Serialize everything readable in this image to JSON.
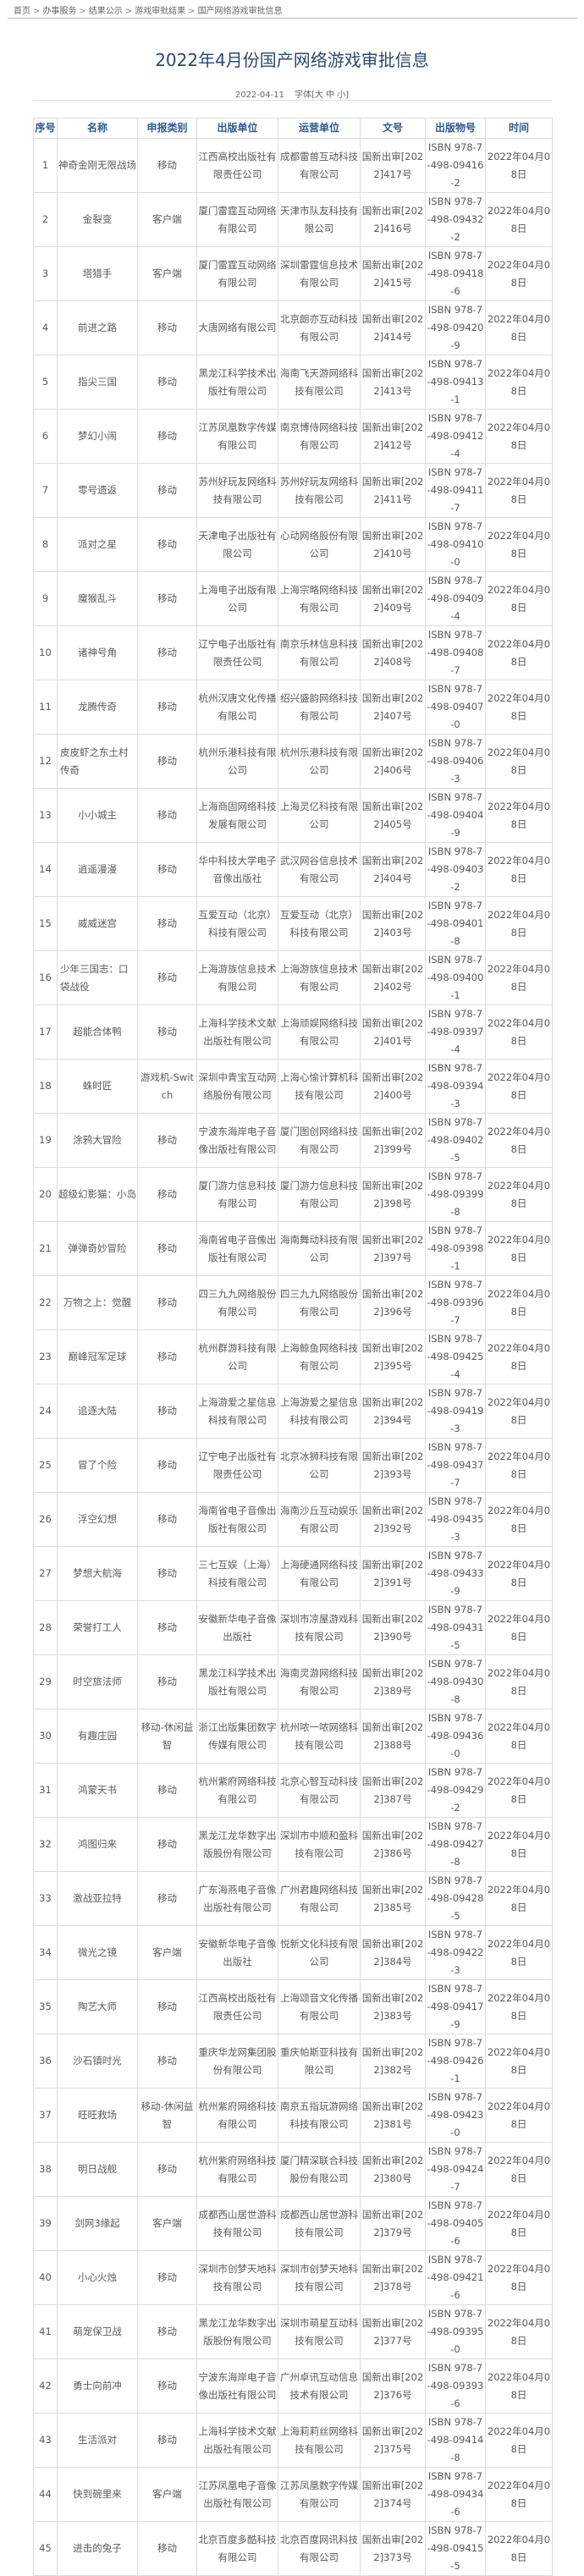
{
  "breadcrumb": [
    "首页",
    "办事服务",
    "结果公示",
    "游戏审批结果",
    "国产网络游戏审批信息"
  ],
  "breadcrumb_sep": ">",
  "title": "2022年4月份国产网络游戏审批信息",
  "meta": {
    "date": "2022-04-11",
    "font_label": "字体",
    "font_open": "[",
    "font_large": "大",
    "font_medium": "中",
    "font_small": "小",
    "font_close": "]"
  },
  "table": {
    "headers": [
      "序号",
      "名称",
      "申报类别",
      "出版单位",
      "运营单位",
      "文号",
      "出版物号",
      "时间"
    ],
    "rows": [
      [
        "1",
        "神奇金刚无限战场",
        "移动",
        "江西高校出版社有限责任公司",
        "成都雷兽互动科技有限公司",
        "国新出审[2022]417号",
        "ISBN 978-7-498-09416-2",
        "2022年04月08日"
      ],
      [
        "2",
        "金裂变",
        "客户端",
        "厦门雷霆互动网络有限公司",
        "天津市队友科技有限公司",
        "国新出审[2022]416号",
        "ISBN 978-7-498-09432-2",
        "2022年04月08日"
      ],
      [
        "3",
        "塔猎手",
        "客户端",
        "厦门雷霆互动网络有限公司",
        "深圳雷霆信息技术有限公司",
        "国新出审[2022]415号",
        "ISBN 978-7-498-09418-6",
        "2022年04月08日"
      ],
      [
        "4",
        "前进之路",
        "移动",
        "大唐网络有限公司",
        "北京朗亦互动科技有限公司",
        "国新出审[2022]414号",
        "ISBN 978-7-498-09420-9",
        "2022年04月08日"
      ],
      [
        "5",
        "指尖三国",
        "移动",
        "黑龙江科学技术出版社有限公司",
        "海南飞天游网络科技有限公司",
        "国新出审[2022]413号",
        "ISBN 978-7-498-09413-1",
        "2022年04月08日"
      ],
      [
        "6",
        "梦幻小闹",
        "移动",
        "江苏凤凰数字传媒有限公司",
        "南京博侍网络科技有限公司",
        "国新出审[2022]412号",
        "ISBN 978-7-498-09412-4",
        "2022年04月08日"
      ],
      [
        "7",
        "零号遗返",
        "移动",
        "苏州好玩友网络科技有限公司",
        "苏州好玩友网络科技有限公司",
        "国新出审[2022]411号",
        "ISBN 978-7-498-09411-7",
        "2022年04月08日"
      ],
      [
        "8",
        "派对之星",
        "移动",
        "天津电子出版社有限公司",
        "心动网络股份有限公司",
        "国新出审[2022]410号",
        "ISBN 978-7-498-09410-0",
        "2022年04月08日"
      ],
      [
        "9",
        "魔猴乱斗",
        "移动",
        "上海电子出版有限公司",
        "上海宗略网络科技有限公司",
        "国新出审[2022]409号",
        "ISBN 978-7-498-09409-4",
        "2022年04月08日"
      ],
      [
        "10",
        "诸神号角",
        "移动",
        "辽宁电子出版社有限责任公司",
        "南京乐林信息科技有限公司",
        "国新出审[2022]408号",
        "ISBN 978-7-498-09408-7",
        "2022年04月08日"
      ],
      [
        "11",
        "龙腾传奇",
        "移动",
        "杭州汉唐文化传播有限公司",
        "绍兴盛韵网络科技有限公司",
        "国新出审[2022]407号",
        "ISBN 978-7-498-09407-0",
        "2022年04月08日"
      ],
      [
        "12",
        "皮皮虾之东土村传奇",
        "移动",
        "杭州乐港科技有限公司",
        "杭州乐港科技有限公司",
        "国新出审[2022]406号",
        "ISBN 978-7-498-09406-3",
        "2022年04月08日"
      ],
      [
        "13",
        "小小城主",
        "移动",
        "上海商固网络科技发展有限公司",
        "上海灵亿科技有限公司",
        "国新出审[2022]405号",
        "ISBN 978-7-498-09404-9",
        "2022年04月08日"
      ],
      [
        "14",
        "逍遥漫漫",
        "移动",
        "华中科技大学电子音像出版社",
        "武汉网谷信息技术有限公司",
        "国新出审[2022]404号",
        "ISBN 978-7-498-09403-2",
        "2022年04月08日"
      ],
      [
        "15",
        "威威迷宫",
        "移动",
        "互爱互动（北京）科技有限公司",
        "互爱互动（北京）科技有限公司",
        "国新出审[2022]403号",
        "ISBN 978-7-498-09401-8",
        "2022年04月08日"
      ],
      [
        "16",
        "少年三国志：口袋战役",
        "移动",
        "上海游族信息技术有限公司",
        "上海游族信息技术有限公司",
        "国新出审[2022]402号",
        "ISBN 978-7-498-09400-1",
        "2022年04月08日"
      ],
      [
        "17",
        "超能合体鸭",
        "移动",
        "上海科学技术文献出版社有限公司",
        "上海顽娱网络科技有限公司",
        "国新出审[2022]401号",
        "ISBN 978-7-498-09397-4",
        "2022年04月08日"
      ],
      [
        "18",
        "蛛时匠",
        "游戏机-Switch",
        "深圳中青宝互动网络股份有限公司",
        "上海心愉计算机科技有限公司",
        "国新出审[2022]400号",
        "ISBN 978-7-498-09394-3",
        "2022年04月08日"
      ],
      [
        "19",
        "涂鸦大冒险",
        "移动",
        "宁波东海岸电子音像出版社有限公司",
        "厦门图创网络科技有限公司",
        "国新出审[2022]399号",
        "ISBN 978-7-498-09402-5",
        "2022年04月08日"
      ],
      [
        "20",
        "超级幻影猫：小岛",
        "移动",
        "厦门游力信息科技有限公司",
        "厦门游力信息科技有限公司",
        "国新出审[2022]398号",
        "ISBN 978-7-498-09399-8",
        "2022年04月08日"
      ],
      [
        "21",
        "弹弹奇妙冒险",
        "移动",
        "海南省电子音像出版社有限公司",
        "海南舞动科技有限公司",
        "国新出审[2022]397号",
        "ISBN 978-7-498-09398-1",
        "2022年04月08日"
      ],
      [
        "22",
        "万物之上：觉醒",
        "移动",
        "四三九九网络股份有限公司",
        "四三九九网络股份有限公司",
        "国新出审[2022]396号",
        "ISBN 978-7-498-09396-7",
        "2022年04月08日"
      ],
      [
        "23",
        "巅峰冠军足球",
        "移动",
        "杭州群游科技有限公司",
        "上海鲸鱼网络科技有限公司",
        "国新出审[2022]395号",
        "ISBN 978-7-498-09425-4",
        "2022年04月08日"
      ],
      [
        "24",
        "追逐大陆",
        "移动",
        "上海游爱之星信息科技有限公司",
        "上海游爱之星信息科技有限公司",
        "国新出审[2022]394号",
        "ISBN 978-7-498-09419-3",
        "2022年04月08日"
      ],
      [
        "25",
        "冒了个险",
        "移动",
        "辽宁电子出版社有限责任公司",
        "北京冰狮科技有限公司",
        "国新出审[2022]393号",
        "ISBN 978-7-498-09437-7",
        "2022年04月08日"
      ],
      [
        "26",
        "浮空幻想",
        "移动",
        "海南省电子音像出版社有限公司",
        "海南沙丘互动娱乐有限公司",
        "国新出审[2022]392号",
        "ISBN 978-7-498-09435-3",
        "2022年04月08日"
      ],
      [
        "27",
        "梦想大航海",
        "移动",
        "三七互娱（上海）科技有限公司",
        "上海硬通网络科技有限公司",
        "国新出审[2022]391号",
        "ISBN 978-7-498-09433-9",
        "2022年04月08日"
      ],
      [
        "28",
        "荣誉打工人",
        "移动",
        "安徽新华电子音像出版社",
        "深圳市凉屋游戏科技有限公司",
        "国新出审[2022]390号",
        "ISBN 978-7-498-09431-5",
        "2022年04月08日"
      ],
      [
        "29",
        "时空旅法师",
        "移动",
        "黑龙江科学技术出版社有限公司",
        "海南灵游网络科技有限公司",
        "国新出审[2022]389号",
        "ISBN 978-7-498-09430-8",
        "2022年04月08日"
      ],
      [
        "30",
        "有趣庄园",
        "移动-休闲益智",
        "浙江出版集团数字传媒有限公司",
        "杭州哝一哝网络科技有限公司",
        "国新出审[2022]388号",
        "ISBN 978-7-498-09436-0",
        "2022年04月08日"
      ],
      [
        "31",
        "鸿蒙天书",
        "移动",
        "杭州紫府网络科技有限公司",
        "北京心智互动科技有限公司",
        "国新出审[2022]387号",
        "ISBN 978-7-498-09429-2",
        "2022年04月08日"
      ],
      [
        "32",
        "鸿图归来",
        "移动",
        "黑龙江龙华数字出版股份有限公司",
        "深圳市中顺和盈科技有限公司",
        "国新出审[2022]386号",
        "ISBN 978-7-498-09427-8",
        "2022年04月08日"
      ],
      [
        "33",
        "激战亚拉特",
        "移动",
        "广东海燕电子音像出版社有限公司",
        "广州君趣网络科技有限公司",
        "国新出审[2022]385号",
        "ISBN 978-7-498-09428-5",
        "2022年04月08日"
      ],
      [
        "34",
        "微光之镜",
        "客户端",
        "安徽新华电子音像出版社",
        "悦新文化科技有限公司",
        "国新出审[2022]384号",
        "ISBN 978-7-498-09422-3",
        "2022年04月08日"
      ],
      [
        "35",
        "陶艺大师",
        "移动",
        "江西高校出版社有限责任公司",
        "上海颂音文化传播有限公司",
        "国新出审[2022]383号",
        "ISBN 978-7-498-09417-9",
        "2022年04月08日"
      ],
      [
        "36",
        "沙石镇时光",
        "移动",
        "重庆华龙网集团股份有限公司",
        "重庆帕斯亚科技有限公司",
        "国新出审[2022]382号",
        "ISBN 978-7-498-09426-1",
        "2022年04月08日"
      ],
      [
        "37",
        "旺旺救场",
        "移动-休闲益智",
        "杭州紫府网络科技有限公司",
        "南京五指玩游网络科技有限公司",
        "国新出审[2022]381号",
        "ISBN 978-7-498-09423-0",
        "2022年04月08日"
      ],
      [
        "38",
        "明日战舰",
        "移动",
        "杭州紫府网络科技有限公司",
        "厦门精深联合科技股份有限公司",
        "国新出审[2022]380号",
        "ISBN 978-7-498-09424-7",
        "2022年04月08日"
      ],
      [
        "39",
        "剑网3缘起",
        "客户端",
        "成都西山居世游科技有限公司",
        "成都西山居世游科技有限公司",
        "国新出审[2022]379号",
        "ISBN 978-7-498-09405-6",
        "2022年04月08日"
      ],
      [
        "40",
        "小心火烛",
        "移动",
        "深圳市创梦天地科技有限公司",
        "深圳市创梦天地科技有限公司",
        "国新出审[2022]378号",
        "ISBN 978-7-498-09421-6",
        "2022年04月08日"
      ],
      [
        "41",
        "萌宠保卫战",
        "移动",
        "黑龙江龙华数字出版股份有限公司",
        "深圳市萌星互动科技有限公司",
        "国新出审[2022]377号",
        "ISBN 978-7-498-09395-0",
        "2022年04月08日"
      ],
      [
        "42",
        "勇士向前冲",
        "移动",
        "宁波东海岸电子音像出版社有限公司",
        "广州卓讯互动信息技术有限公司",
        "国新出审[2022]376号",
        "ISBN 978-7-498-09393-6",
        "2022年04月08日"
      ],
      [
        "43",
        "生活派对",
        "移动",
        "上海科学技术文献出版社有限公司",
        "上海莉莉丝网络科技有限公司",
        "国新出审[2022]375号",
        "ISBN 978-7-498-09414-8",
        "2022年04月08日"
      ],
      [
        "44",
        "快到碗里来",
        "客户端",
        "江苏凤凰电子音像出版社有限公司",
        "江苏凤凰数字传媒有限公司",
        "国新出审[2022]374号",
        "ISBN 978-7-498-09434-6",
        "2022年04月08日"
      ],
      [
        "45",
        "进击的兔子",
        "移动",
        "北京百度多酷科技有限公司",
        "北京百度网讯科技有限公司",
        "国新出审[2022]373号",
        "ISBN 978-7-498-09415-5",
        "2022年04月08日"
      ]
    ]
  }
}
